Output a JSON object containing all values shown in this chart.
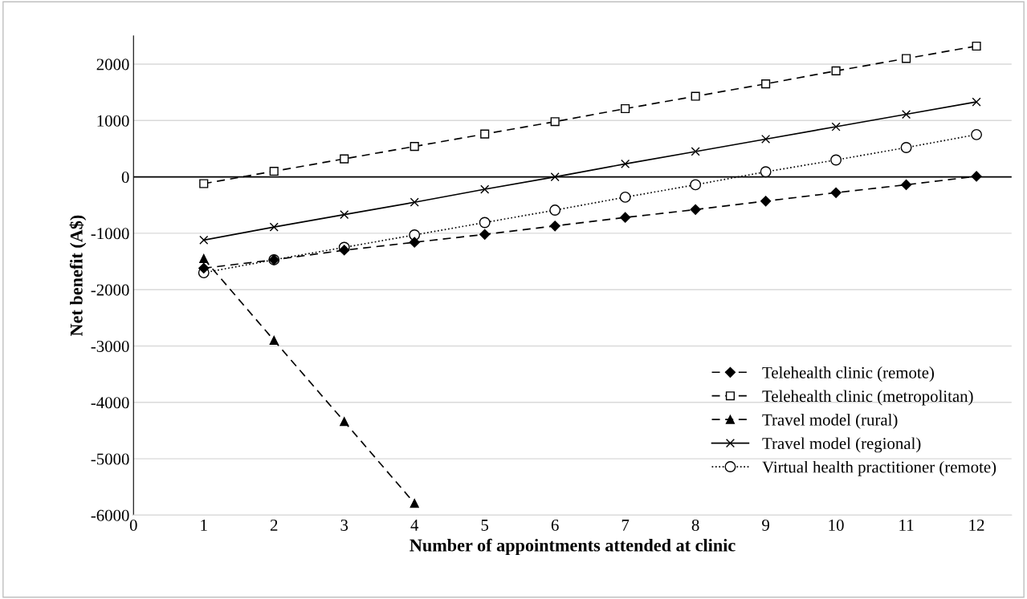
{
  "chart_data": {
    "type": "line",
    "xlabel": "Number of appointments attended at clinic",
    "ylabel": "Net benefit (A$)",
    "x": [
      1,
      2,
      3,
      4,
      5,
      6,
      7,
      8,
      9,
      10,
      11,
      12
    ],
    "series": [
      {
        "name": "Telehealth clinic (remote)",
        "color": "#000000",
        "marker": "diamond",
        "line_style": "dashed",
        "values": [
          -1620,
          -1470,
          -1300,
          -1160,
          -1020,
          -870,
          -720,
          -580,
          -430,
          -280,
          -140,
          10
        ]
      },
      {
        "name": "Telehealth clinic (metropolitan)",
        "color": "#000000",
        "marker": "square",
        "line_style": "dashed",
        "values": [
          -120,
          100,
          320,
          540,
          760,
          980,
          1210,
          1430,
          1650,
          1880,
          2100,
          2320
        ]
      },
      {
        "name": "Travel model (rural)",
        "color": "#000000",
        "marker": "triangle",
        "line_style": "dashed",
        "x": [
          1,
          2,
          3,
          4
        ],
        "values": [
          -1450,
          -2900,
          -4340,
          -5790
        ]
      },
      {
        "name": "Travel model (regional)",
        "color": "#000000",
        "marker": "cross",
        "line_style": "solid",
        "values": [
          -1120,
          -890,
          -670,
          -450,
          -220,
          0,
          230,
          450,
          670,
          890,
          1110,
          1330
        ]
      },
      {
        "name": "Virtual health practitioner (remote)",
        "color": "#000000",
        "marker": "circle",
        "line_style": "dotted",
        "values": [
          -1700,
          -1470,
          -1250,
          -1030,
          -810,
          -590,
          -360,
          -140,
          90,
          300,
          520,
          750
        ]
      }
    ],
    "xlim": [
      0,
      12.5
    ],
    "xticks": [
      0,
      1,
      2,
      3,
      4,
      5,
      6,
      7,
      8,
      9,
      10,
      11,
      12
    ],
    "ylim": [
      -6000,
      2500
    ],
    "yticks": [
      -6000,
      -5000,
      -4000,
      -3000,
      -2000,
      -1000,
      0,
      1000,
      2000
    ],
    "ref_lines": [
      {
        "axis": "y",
        "value": 0,
        "color": "#000000"
      }
    ],
    "grid": "y",
    "legend": "bottom right"
  }
}
